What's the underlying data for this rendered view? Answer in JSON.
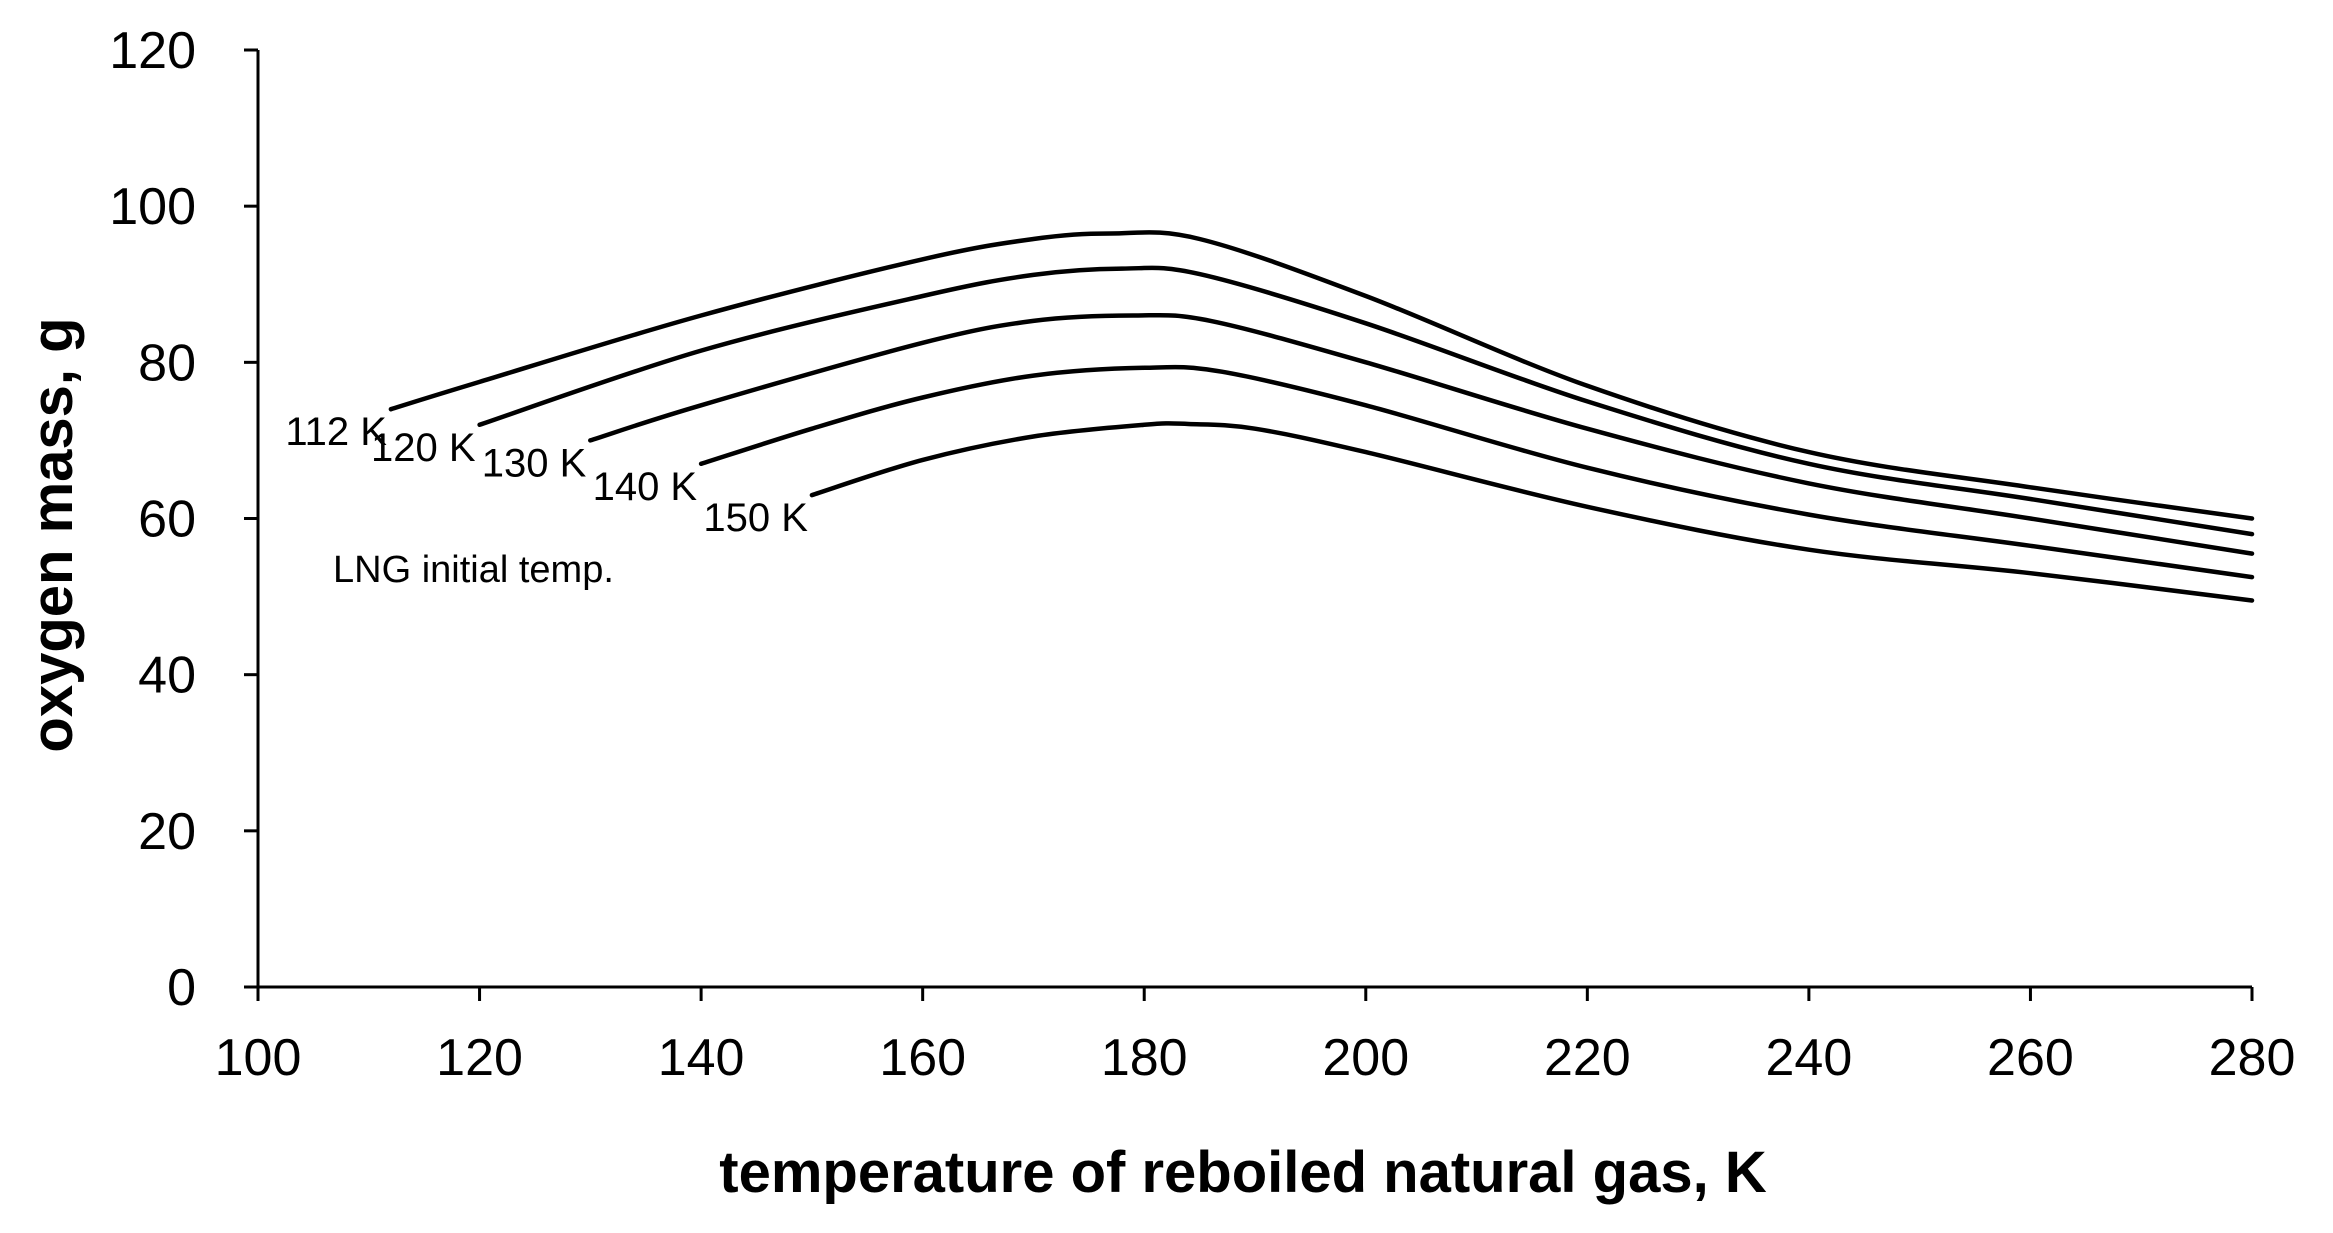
{
  "chart_data": {
    "type": "line",
    "title": "",
    "xlabel": "temperature of reboiled natural gas, K",
    "ylabel": "oxygen mass, g",
    "xlim": [
      100,
      280
    ],
    "ylim": [
      0,
      120
    ],
    "xticks": [
      100,
      120,
      140,
      160,
      180,
      200,
      220,
      240,
      260,
      280
    ],
    "yticks": [
      0,
      20,
      40,
      60,
      80,
      100,
      120
    ],
    "grid": false,
    "annotation": "LNG initial temp.",
    "series": [
      {
        "name": "112 K",
        "x": [
          112,
          120,
          140,
          160,
          170,
          177,
          185,
          200,
          220,
          240,
          260,
          280
        ],
        "y": [
          74,
          77.5,
          86,
          93.2,
          95.8,
          96.5,
          95.8,
          88.5,
          77,
          68.5,
          64,
          60
        ]
      },
      {
        "name": "120 K",
        "x": [
          120,
          140,
          160,
          170,
          178,
          185,
          200,
          220,
          240,
          260,
          280
        ],
        "y": [
          72,
          81.5,
          88.5,
          91.2,
          92,
          91.3,
          85,
          75,
          67,
          62.5,
          58
        ]
      },
      {
        "name": "130 K",
        "x": [
          130,
          140,
          160,
          170,
          179,
          186,
          200,
          220,
          240,
          260,
          280
        ],
        "y": [
          70,
          74.5,
          82.5,
          85.3,
          86,
          85.3,
          80,
          71.5,
          64.5,
          60,
          55.5
        ]
      },
      {
        "name": "140 K",
        "x": [
          140,
          150,
          160,
          170,
          180,
          187,
          200,
          220,
          240,
          260,
          280
        ],
        "y": [
          67,
          71.5,
          75.5,
          78.3,
          79.3,
          78.8,
          74.5,
          66.5,
          60.5,
          56.5,
          52.5
        ]
      },
      {
        "name": "150 K",
        "x": [
          150,
          160,
          170,
          180,
          184,
          190,
          200,
          220,
          240,
          260,
          280
        ],
        "y": [
          63,
          67.5,
          70.5,
          72,
          72.1,
          71.5,
          68.5,
          61.5,
          56,
          53,
          49.5
        ]
      }
    ]
  }
}
